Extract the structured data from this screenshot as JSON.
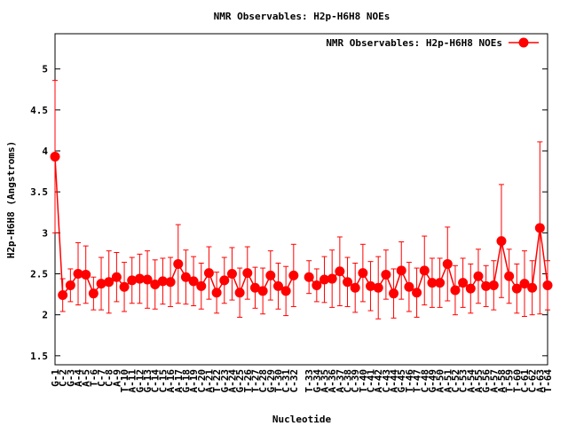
{
  "chart_data": {
    "type": "line",
    "title": "NMR Observables: H2p-H6H8 NOEs",
    "x_label": "Nucleotide",
    "y_label": "H2p-H6H8 (Angstroms)",
    "categories": [
      "G-1",
      "C-2",
      "G-3",
      "A-4",
      "A-5",
      "T-6",
      "C-7",
      "C-8",
      "A-9",
      "T-10",
      "A-11",
      "G-12",
      "G-13",
      "C-14",
      "C-15",
      "A-16",
      "A-17",
      "G-18",
      "A-19",
      "C-20",
      "A-21",
      "T-22",
      "G-23",
      "A-24",
      "G-25",
      "T-26",
      "T-27",
      "C-28",
      "G-29",
      "T-30",
      "C-31",
      "C-32",
      null,
      "T-33",
      "G-34",
      "A-35",
      "A-36",
      "A-37",
      "C-38",
      "C-39",
      "T-40",
      "C-41",
      "A-42",
      "C-43",
      "A-44",
      "G-45",
      "T-46",
      "T-47",
      "C-48",
      "G-49",
      "A-50",
      "A-51",
      "C-52",
      "C-53",
      "A-54",
      "A-55",
      "G-56",
      "A-57",
      "A-58",
      "T-59",
      "T-60",
      "C-61",
      "C-62",
      "A-63",
      "T-64"
    ],
    "series": [
      {
        "name": "NMR Observables: H2p-H6H8 NOEs",
        "color": "#ff0000",
        "values": [
          3.93,
          2.24,
          2.36,
          2.5,
          2.49,
          2.26,
          2.38,
          2.4,
          2.46,
          2.34,
          2.42,
          2.44,
          2.43,
          2.37,
          2.41,
          2.4,
          2.62,
          2.46,
          2.41,
          2.35,
          2.51,
          2.27,
          2.42,
          2.5,
          2.27,
          2.51,
          2.33,
          2.29,
          2.48,
          2.35,
          2.29,
          2.48,
          null,
          2.46,
          2.36,
          2.43,
          2.44,
          2.53,
          2.4,
          2.33,
          2.51,
          2.35,
          2.33,
          2.49,
          2.26,
          2.54,
          2.34,
          2.27,
          2.54,
          2.39,
          2.39,
          2.62,
          2.3,
          2.39,
          2.32,
          2.47,
          2.35,
          2.36,
          2.9,
          2.47,
          2.32,
          2.38,
          2.33,
          3.06,
          2.36
        ],
        "errors": [
          0.93,
          0.2,
          0.2,
          0.38,
          0.35,
          0.2,
          0.32,
          0.38,
          0.3,
          0.3,
          0.28,
          0.3,
          0.35,
          0.3,
          0.28,
          0.3,
          0.48,
          0.33,
          0.3,
          0.28,
          0.32,
          0.25,
          0.28,
          0.32,
          0.3,
          0.32,
          0.25,
          0.28,
          0.3,
          0.28,
          0.3,
          0.38,
          null,
          0.2,
          0.2,
          0.28,
          0.35,
          0.42,
          0.3,
          0.3,
          0.35,
          0.3,
          0.38,
          0.3,
          0.3,
          0.35,
          0.3,
          0.3,
          0.42,
          0.3,
          0.3,
          0.45,
          0.3,
          0.3,
          0.3,
          0.33,
          0.25,
          0.3,
          0.69,
          0.33,
          0.3,
          0.4,
          0.33,
          1.05,
          0.3
        ]
      }
    ],
    "ylim": [
      1.39,
      5.43
    ],
    "yticks": [
      1.5,
      2,
      2.5,
      3,
      3.5,
      4,
      4.5,
      5
    ],
    "legend": "top-right"
  }
}
